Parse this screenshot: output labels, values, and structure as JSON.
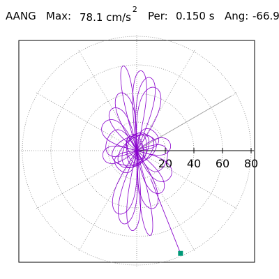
{
  "header": {
    "channel": "AANG",
    "max_label": "Max:",
    "max_value": "78.1 cm/s",
    "max_exponent": "2",
    "per_label": "Per:",
    "per_value": "0.150 s",
    "ang_label": "Ang:",
    "ang_value": "-66.9"
  },
  "chart_data": {
    "type": "polar-trace",
    "radial_ticks": [
      20,
      40,
      60,
      80
    ],
    "radial_range": [
      0,
      82
    ],
    "gridlines": "dotted",
    "trace_color": "#8800cc",
    "marker_color": "#009977",
    "peak": {
      "magnitude": 78.1,
      "angle_deg": -66.9
    },
    "direction_line_deg": 30,
    "trace_petals": [
      {
        "angle_deg": 99,
        "amplitude": 60,
        "width": 6
      },
      {
        "angle_deg": 87,
        "amplitude": 56,
        "width": 8
      },
      {
        "angle_deg": 80,
        "amplitude": 52,
        "width": 10
      },
      {
        "angle_deg": 74,
        "amplitude": 46,
        "width": 12
      },
      {
        "angle_deg": 106,
        "amplitude": 42,
        "width": 10
      },
      {
        "angle_deg": 140,
        "amplitude": 30,
        "width": 12
      },
      {
        "angle_deg": 10,
        "amplitude": 24,
        "width": 10
      },
      {
        "angle_deg": 160,
        "amplitude": 22,
        "width": 16
      },
      {
        "angle_deg": 45,
        "amplitude": 18,
        "width": 12
      },
      {
        "angle_deg": 120,
        "amplitude": 34,
        "width": 10
      }
    ]
  }
}
